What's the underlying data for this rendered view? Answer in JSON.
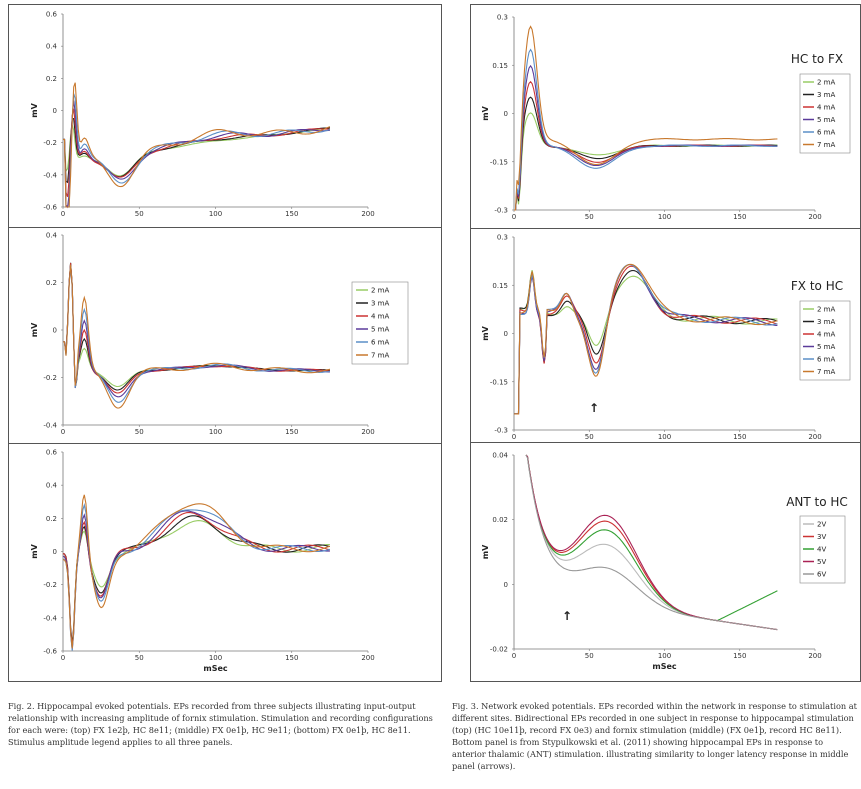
{
  "fig2": {
    "caption": {
      "label": "Fig. 2.",
      "text": "Hippocampal evoked potentials. EPs recorded from three subjects illustrating input-output relationship with increasing amplitude of fornix stimulation. Stimulation and recording configurations for each were: (top) FX 1e2þ, HC 8e11; (middle) FX 0e1þ, HC 9e11; (bottom) FX 0e1þ, HC 8e11. Stimulus amplitude legend applies to all three panels."
    },
    "legend": [
      "2 mA",
      "3 mA",
      "4 mA",
      "5 mA",
      "6 mA",
      "7 mA"
    ],
    "xlabel": "mSec",
    "ylabel": "mV"
  },
  "fig3": {
    "caption": {
      "label": "Fig. 3.",
      "text": "Network evoked potentials. EPs recorded within the network in response to stimulation at different sites. Bidirectional EPs recorded in one subject in response to hippocampal stimulation (top) (HC 10e11þ, record FX 0e3) and fornix stimulation (middle) (FX 0e1þ, record HC 8e11). Bottom panel is from Stypulkowski et al. (2011) showing hippocampal EPs in response to anterior thalamic (ANT) stimulation. illustrating similarity to longer latency response in middle panel (arrows)."
    },
    "legend_ma": [
      "2 mA",
      "3 mA",
      "4 mA",
      "5 mA",
      "6 mA",
      "7 mA"
    ],
    "legend_v": [
      "2V",
      "3V",
      "4V",
      "5V",
      "6V"
    ],
    "xlabel": "mSec",
    "ylabel": "mV",
    "arrow": "↑"
  },
  "series_colors": {
    "2": "#99cc66",
    "3": "#222222",
    "4": "#cc3333",
    "5": "#5b3b9a",
    "6": "#5b8fc7",
    "7": "#c8792e",
    "v2": "#bbbbbb",
    "v3": "#cc3333",
    "v4": "#33a033",
    "v5": "#aa2255",
    "v6": "#999999"
  },
  "chart_data": [
    {
      "type": "line",
      "id": "fig2-top",
      "x": [
        0,
        200
      ],
      "xticks": [
        "0",
        "50",
        "100",
        "150",
        "200"
      ],
      "ylim": [
        -0.6,
        0.6
      ],
      "yticks": [
        "0.6",
        "0.4",
        "0.2",
        "0",
        "-0.2",
        "-0.4",
        "-0.6"
      ],
      "ylabel": "mV",
      "xlabel": "",
      "series_names": [
        "2 mA",
        "3 mA",
        "4 mA",
        "5 mA",
        "6 mA",
        "7 mA"
      ]
    },
    {
      "type": "line",
      "id": "fig2-mid",
      "x": [
        0,
        200
      ],
      "xticks": [
        "0",
        "50",
        "100",
        "150",
        "200"
      ],
      "ylim": [
        -0.4,
        0.4
      ],
      "yticks": [
        "0.4",
        "0.2",
        "0",
        "-0.2",
        "-0.4"
      ],
      "ylabel": "mV",
      "xlabel": "",
      "legend": [
        "2 mA",
        "3 mA",
        "4 mA",
        "5 mA",
        "6 mA",
        "7 mA"
      ]
    },
    {
      "type": "line",
      "id": "fig2-bot",
      "x": [
        0,
        200
      ],
      "xticks": [
        "0",
        "50",
        "100",
        "150",
        "200"
      ],
      "ylim": [
        -0.6,
        0.6
      ],
      "yticks": [
        "0.6",
        "0.4",
        "0.2",
        "0",
        "-0.2",
        "-0.4",
        "-0.6"
      ],
      "ylabel": "mV",
      "xlabel": "mSec"
    },
    {
      "type": "line",
      "id": "fig3-top",
      "title": "HC to FX",
      "x": [
        0,
        200
      ],
      "xticks": [
        "0",
        "50",
        "100",
        "150",
        "200"
      ],
      "ylim": [
        -0.3,
        0.3
      ],
      "yticks": [
        "0.3",
        "0.15",
        "0",
        "-0.15",
        "-0.3"
      ],
      "ylabel": "mV",
      "legend": [
        "2 mA",
        "3 mA",
        "4 mA",
        "5 mA",
        "6 mA",
        "7 mA"
      ]
    },
    {
      "type": "line",
      "id": "fig3-mid",
      "title": "FX to HC",
      "x": [
        0,
        200
      ],
      "xticks": [
        "0",
        "50",
        "100",
        "150",
        "200"
      ],
      "ylim": [
        -0.3,
        0.3
      ],
      "yticks": [
        "0.3",
        "0.15",
        "0",
        "-0.15",
        "-0.3"
      ],
      "ylabel": "mV",
      "legend": [
        "2 mA",
        "3 mA",
        "4 mA",
        "5 mA",
        "6 mA",
        "7 mA"
      ]
    },
    {
      "type": "line",
      "id": "fig3-bot",
      "title": "ANT to HC",
      "x": [
        0,
        200
      ],
      "xticks": [
        "0",
        "50",
        "100",
        "150",
        "200"
      ],
      "ylim": [
        -0.02,
        0.04
      ],
      "yticks": [
        "0.04",
        "0.02",
        "0",
        "-0.02"
      ],
      "ylabel": "mV",
      "xlabel": "mSec",
      "legend": [
        "2V",
        "3V",
        "4V",
        "5V",
        "6V"
      ]
    }
  ]
}
